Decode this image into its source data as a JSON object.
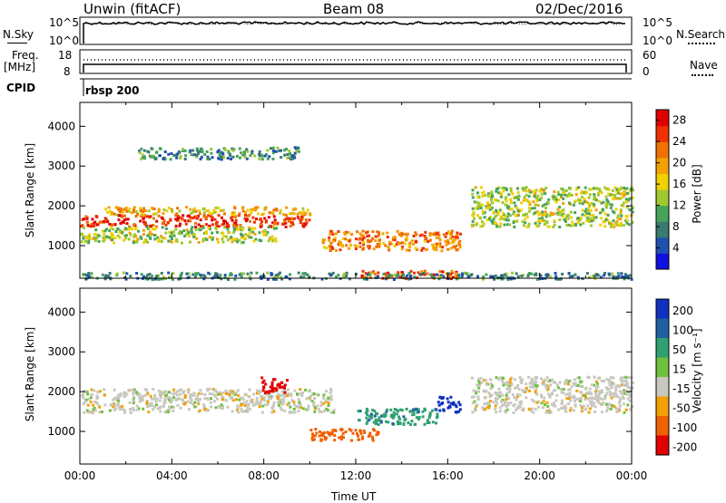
{
  "header": {
    "station": "Unwin (fitACF)",
    "beam": "Beam 08",
    "date": "02/Dec/2016"
  },
  "noise_panel": {
    "left_label": "N.Sky",
    "left_ticks": [
      "10^5",
      "10^0"
    ],
    "right_label": "N.Search",
    "right_ticks": [
      "10^5",
      "10^0"
    ]
  },
  "freq_panel": {
    "left_label_1": "Freq.",
    "left_label_2": "[MHz]",
    "left_ticks": [
      "18",
      "8"
    ],
    "right_label": "Nave",
    "right_ticks": [
      "60",
      "0"
    ],
    "cpid_label": "CPID",
    "cpid_value": "rbsp 200"
  },
  "colors": {
    "power": [
      "#1010e0",
      "#2050b0",
      "#3a7a70",
      "#45a45a",
      "#a0c830",
      "#f0d000",
      "#f4a000",
      "#f07000",
      "#f03000",
      "#e00000"
    ],
    "velocity": [
      "#1030c0",
      "#2060a0",
      "#30a070",
      "#70c040",
      "#c8c8c0",
      "#f0a000",
      "#f06000",
      "#e00000"
    ]
  },
  "chart_data": [
    {
      "type": "heatmap",
      "name": "power",
      "ylabel": "Slant Range [km]",
      "x_range": [
        "00:00",
        "24:00"
      ],
      "ylim": [
        180,
        4600
      ],
      "y_ticks": [
        1000,
        2000,
        3000,
        4000
      ],
      "colorbar_label": "Power [dB]",
      "colorbar_ticks": [
        4,
        8,
        12,
        16,
        20,
        24,
        28
      ],
      "colorbar_range": [
        0,
        30
      ],
      "features": [
        {
          "t0": 0.0,
          "t1": 10.0,
          "r0": 1500,
          "r1": 1800,
          "value": 26
        },
        {
          "t0": 1.0,
          "t1": 10.0,
          "r0": 1800,
          "r1": 2000,
          "value": 18
        },
        {
          "t0": 0.0,
          "t1": 8.5,
          "r0": 1100,
          "r1": 1500,
          "value": 14
        },
        {
          "t0": 2.5,
          "t1": 9.5,
          "r0": 3200,
          "r1": 3500,
          "value": 8
        },
        {
          "t0": 10.5,
          "t1": 16.5,
          "r0": 900,
          "r1": 1400,
          "value": 22
        },
        {
          "t0": 12.0,
          "t1": 16.5,
          "r0": 200,
          "r1": 400,
          "value": 24
        },
        {
          "t0": 17.0,
          "t1": 24.0,
          "r0": 1500,
          "r1": 2500,
          "value": 14
        },
        {
          "t0": 0.0,
          "t1": 24.0,
          "r0": 180,
          "r1": 350,
          "value": 8
        }
      ]
    },
    {
      "type": "heatmap",
      "name": "velocity",
      "ylabel": "Slant Range [km]",
      "xlabel": "Time UT",
      "x_ticks": [
        "00:00",
        "04:00",
        "08:00",
        "12:00",
        "16:00",
        "20:00",
        "00:00"
      ],
      "ylim": [
        180,
        4600
      ],
      "y_ticks": [
        1000,
        2000,
        3000,
        4000
      ],
      "colorbar_label": "Velocity [m s⁻¹]",
      "colorbar_ticks": [
        200,
        100,
        50,
        15,
        -15,
        -50,
        -100,
        -200
      ],
      "features": [
        {
          "t0": 0.0,
          "t1": 11.0,
          "r0": 1500,
          "r1": 2100,
          "value": 0
        },
        {
          "t0": 7.8,
          "t1": 9.0,
          "r0": 2000,
          "r1": 2400,
          "value": -200
        },
        {
          "t0": 12.0,
          "t1": 15.5,
          "r0": 1200,
          "r1": 1600,
          "value": 60
        },
        {
          "t0": 15.5,
          "t1": 16.5,
          "r0": 1500,
          "r1": 1900,
          "value": 200
        },
        {
          "t0": 10.0,
          "t1": 13.0,
          "r0": 800,
          "r1": 1100,
          "value": -70
        },
        {
          "t0": 17.0,
          "t1": 24.0,
          "r0": 1500,
          "r1": 2400,
          "value": 0
        }
      ]
    }
  ]
}
